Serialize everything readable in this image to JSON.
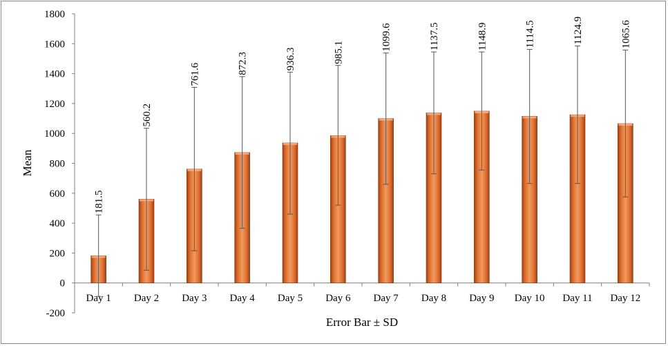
{
  "chart_data": {
    "type": "bar",
    "title": "",
    "xlabel": "Error Bar ± SD",
    "ylabel": "Mean",
    "ylim": [
      -200,
      1800
    ],
    "yticks": [
      -200,
      0,
      200,
      400,
      600,
      800,
      1000,
      1200,
      1400,
      1600,
      1800
    ],
    "categories": [
      "Day 1",
      "Day 2",
      "Day 3",
      "Day 4",
      "Day 5",
      "Day 6",
      "Day 7",
      "Day 8",
      "Day 9",
      "Day 10",
      "Day 11",
      "Day 12"
    ],
    "values": [
      181.5,
      560.2,
      761.6,
      872.3,
      936.3,
      985.1,
      1099.6,
      1137.5,
      1148.9,
      1114.5,
      1124.9,
      1065.6
    ],
    "data_labels": [
      "181.5",
      "560.2",
      "761.6",
      "872.3",
      "936.3",
      "985.1",
      "1099.6",
      "1137.5",
      "1148.9",
      "1114.5",
      "1124.9",
      "1065.6"
    ],
    "error_bars": [
      {
        "low": -90,
        "high": 455
      },
      {
        "low": 85,
        "high": 1035
      },
      {
        "low": 215,
        "high": 1308
      },
      {
        "low": 365,
        "high": 1380
      },
      {
        "low": 460,
        "high": 1410
      },
      {
        "low": 520,
        "high": 1455
      },
      {
        "low": 660,
        "high": 1538
      },
      {
        "low": 730,
        "high": 1545
      },
      {
        "low": 755,
        "high": 1545
      },
      {
        "low": 665,
        "high": 1562
      },
      {
        "low": 665,
        "high": 1585
      },
      {
        "low": 575,
        "high": 1558
      }
    ],
    "bar_color": "#d9692a",
    "grid": false,
    "legend": "none"
  }
}
